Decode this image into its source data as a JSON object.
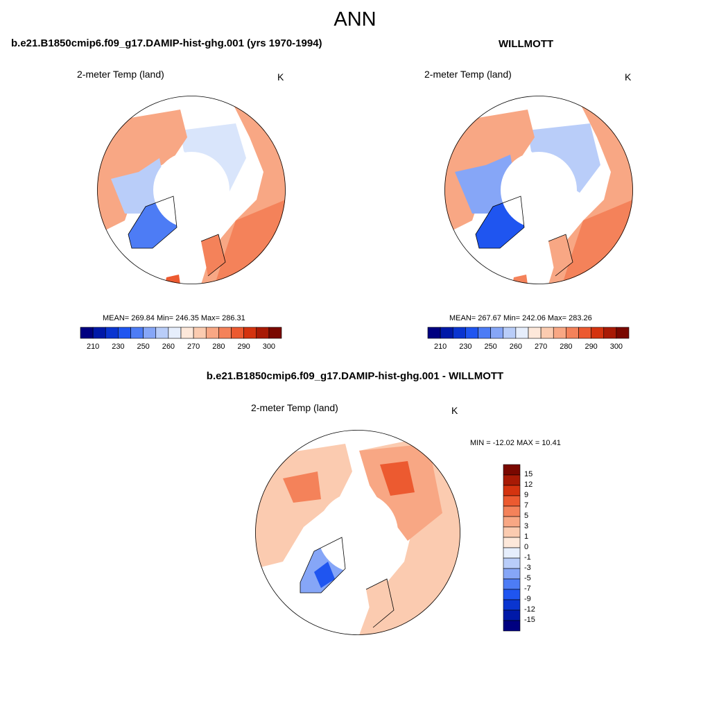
{
  "figure": {
    "title": "ANN"
  },
  "panels": {
    "model": {
      "title": "b.e21.B1850cmip6.f09_g17.DAMIP-hist-ghg.001 (yrs 1970-1994)",
      "variable": "2-meter Temp (land)",
      "units": "K",
      "stats": "MEAN= 269.84  Min= 246.35  Max= 286.31"
    },
    "obs": {
      "title": "WILLMOTT",
      "variable": "2-meter Temp (land)",
      "units": "K",
      "stats": "MEAN= 267.67  Min= 242.06  Max= 283.26"
    },
    "diff": {
      "title": "b.e21.B1850cmip6.f09_g17.DAMIP-hist-ghg.001 - WILLMOTT",
      "variable": "2-meter Temp (land)",
      "units": "K",
      "stats": "MIN = -12.02 MAX =  10.41"
    }
  },
  "colorbars": {
    "absolute": {
      "colors": [
        "#000080",
        "#0019a8",
        "#0a35d0",
        "#1f55f0",
        "#4d7cf5",
        "#86a6f7",
        "#b9cdf9",
        "#e6eefc",
        "#fde8da",
        "#fbcbb0",
        "#f8a784",
        "#f4825a",
        "#ec5a30",
        "#d4330f",
        "#a81a05",
        "#7a0800"
      ],
      "labels": [
        "210",
        "230",
        "250",
        "260",
        "270",
        "280",
        "290",
        "300"
      ]
    },
    "difference": {
      "colors": [
        "#7a0800",
        "#a81a05",
        "#d4330f",
        "#ec5a30",
        "#f4825a",
        "#f8a784",
        "#fbcbb0",
        "#fde8da",
        "#e6eefc",
        "#b9cdf9",
        "#86a6f7",
        "#4d7cf5",
        "#1f55f0",
        "#0a35d0",
        "#0019a8",
        "#000080"
      ],
      "labels": [
        "15",
        "12",
        "9",
        "7",
        "5",
        "3",
        "1",
        "0",
        "-1",
        "-3",
        "-5",
        "-7",
        "-9",
        "-12",
        "-15"
      ]
    }
  }
}
